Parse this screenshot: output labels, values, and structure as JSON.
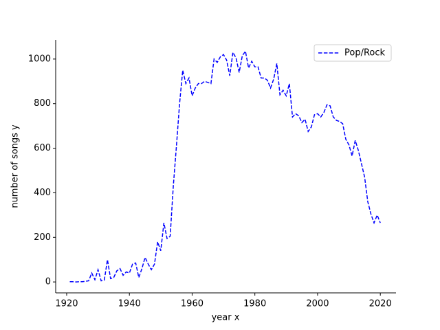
{
  "chart_data": {
    "type": "line",
    "xlabel": "year x",
    "ylabel": "number of songs y",
    "x": [
      1921,
      1922,
      1923,
      1924,
      1925,
      1926,
      1927,
      1928,
      1929,
      1930,
      1931,
      1932,
      1933,
      1934,
      1935,
      1936,
      1937,
      1938,
      1939,
      1940,
      1941,
      1942,
      1943,
      1944,
      1945,
      1946,
      1947,
      1948,
      1949,
      1950,
      1951,
      1952,
      1953,
      1954,
      1955,
      1956,
      1957,
      1958,
      1959,
      1960,
      1961,
      1962,
      1963,
      1964,
      1965,
      1966,
      1967,
      1968,
      1969,
      1970,
      1971,
      1972,
      1973,
      1974,
      1975,
      1976,
      1977,
      1978,
      1979,
      1980,
      1981,
      1982,
      1983,
      1984,
      1985,
      1986,
      1987,
      1988,
      1989,
      1990,
      1991,
      1992,
      1993,
      1994,
      1995,
      1996,
      1997,
      1998,
      1999,
      2000,
      2001,
      2002,
      2003,
      2004,
      2005,
      2006,
      2007,
      2008,
      2009,
      2010,
      2011,
      2012,
      2013,
      2014,
      2015,
      2016,
      2017,
      2018,
      2019,
      2020
    ],
    "series": [
      {
        "name": "Pop/Rock",
        "color": "#0000ff",
        "linestyle": "dashed",
        "values": [
          1,
          1,
          0,
          1,
          1,
          3,
          5,
          40,
          10,
          55,
          5,
          8,
          100,
          15,
          20,
          50,
          60,
          30,
          45,
          40,
          80,
          85,
          20,
          60,
          110,
          80,
          55,
          80,
          180,
          140,
          265,
          195,
          205,
          430,
          610,
          800,
          950,
          890,
          915,
          835,
          870,
          890,
          890,
          900,
          895,
          890,
          1000,
          985,
          1010,
          1020,
          995,
          925,
          1030,
          1005,
          940,
          1015,
          1035,
          960,
          990,
          965,
          965,
          915,
          915,
          905,
          870,
          910,
          980,
          840,
          860,
          835,
          890,
          740,
          755,
          745,
          715,
          730,
          675,
          695,
          750,
          755,
          740,
          760,
          795,
          790,
          740,
          725,
          720,
          710,
          640,
          615,
          565,
          635,
          590,
          530,
          470,
          360,
          305,
          265,
          300,
          265
        ]
      }
    ],
    "xlim": [
      1916.5,
      2025
    ],
    "ylim": [
      -49,
      1086
    ],
    "xticks": [
      1920,
      1940,
      1960,
      1980,
      2000,
      2020
    ],
    "yticks": [
      0,
      200,
      400,
      600,
      800,
      1000
    ],
    "legend": "upper right",
    "grid": false
  }
}
